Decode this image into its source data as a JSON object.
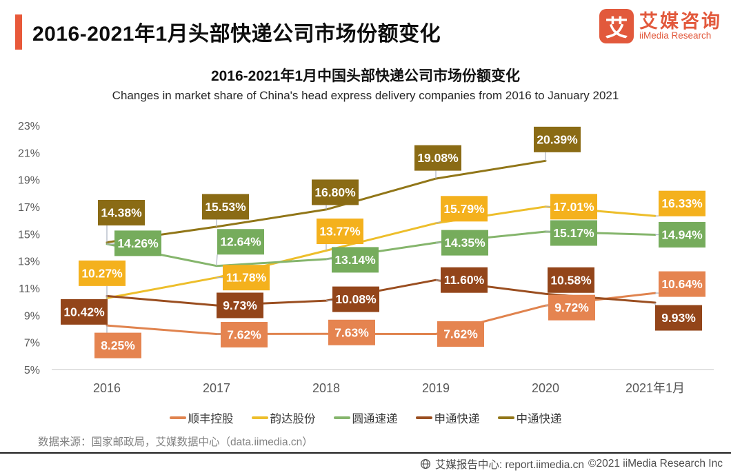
{
  "header": {
    "accent_color": "#E8593A",
    "title": "2016-2021年1月头部快递公司市场份额变化",
    "logo": {
      "glyph": "艾",
      "brand_cn": "艾媒咨询",
      "brand_en": "iiMedia Research",
      "brand_color": "#E2593C"
    }
  },
  "chart": {
    "title": "2016-2021年1月中国头部快递公司市场份额变化",
    "subtitle": "Changes in market share of China's head express delivery companies from 2016 to January 2021"
  },
  "chart_data": {
    "type": "line",
    "title": "2016-2021年1月中国头部快递公司市场份额变化",
    "categories": [
      "2016",
      "2017",
      "2018",
      "2019",
      "2020",
      "2021年1月"
    ],
    "series": [
      {
        "name": "顺丰控股",
        "color": "#E0834E",
        "label_bg": "#E58450",
        "values": [
          8.25,
          7.62,
          7.63,
          7.62,
          9.72,
          10.64
        ]
      },
      {
        "name": "韵达股份",
        "color": "#EDBE2B",
        "label_bg": "#F4B11D",
        "values": [
          10.27,
          11.78,
          13.77,
          15.79,
          17.01,
          16.33
        ]
      },
      {
        "name": "圆通速递",
        "color": "#85B56C",
        "label_bg": "#76AC5C",
        "values": [
          14.26,
          12.64,
          13.14,
          14.35,
          15.17,
          14.94
        ]
      },
      {
        "name": "申通快递",
        "color": "#9A4E20",
        "label_bg": "#93451A",
        "values": [
          10.42,
          9.73,
          10.08,
          11.6,
          10.58,
          9.93
        ]
      },
      {
        "name": "中通快递",
        "color": "#917618",
        "label_bg": "#8A6B15",
        "values": [
          14.38,
          15.53,
          16.8,
          19.08,
          20.39,
          null
        ]
      }
    ],
    "ylim": [
      5,
      23
    ],
    "yticks": [
      23,
      21,
      19,
      17,
      15,
      13,
      11,
      9,
      7,
      5
    ],
    "ytick_suffix": "%",
    "grid": false,
    "legend_position": "bottom",
    "label_format": "0.00%"
  },
  "footer": {
    "source": "数据来源：国家邮政局，艾媒数据中心（data.iimedia.cn）",
    "report_center_label": "艾媒报告中心: report.iimedia.cn",
    "copyright": "©2021  iiMedia Research Inc"
  }
}
